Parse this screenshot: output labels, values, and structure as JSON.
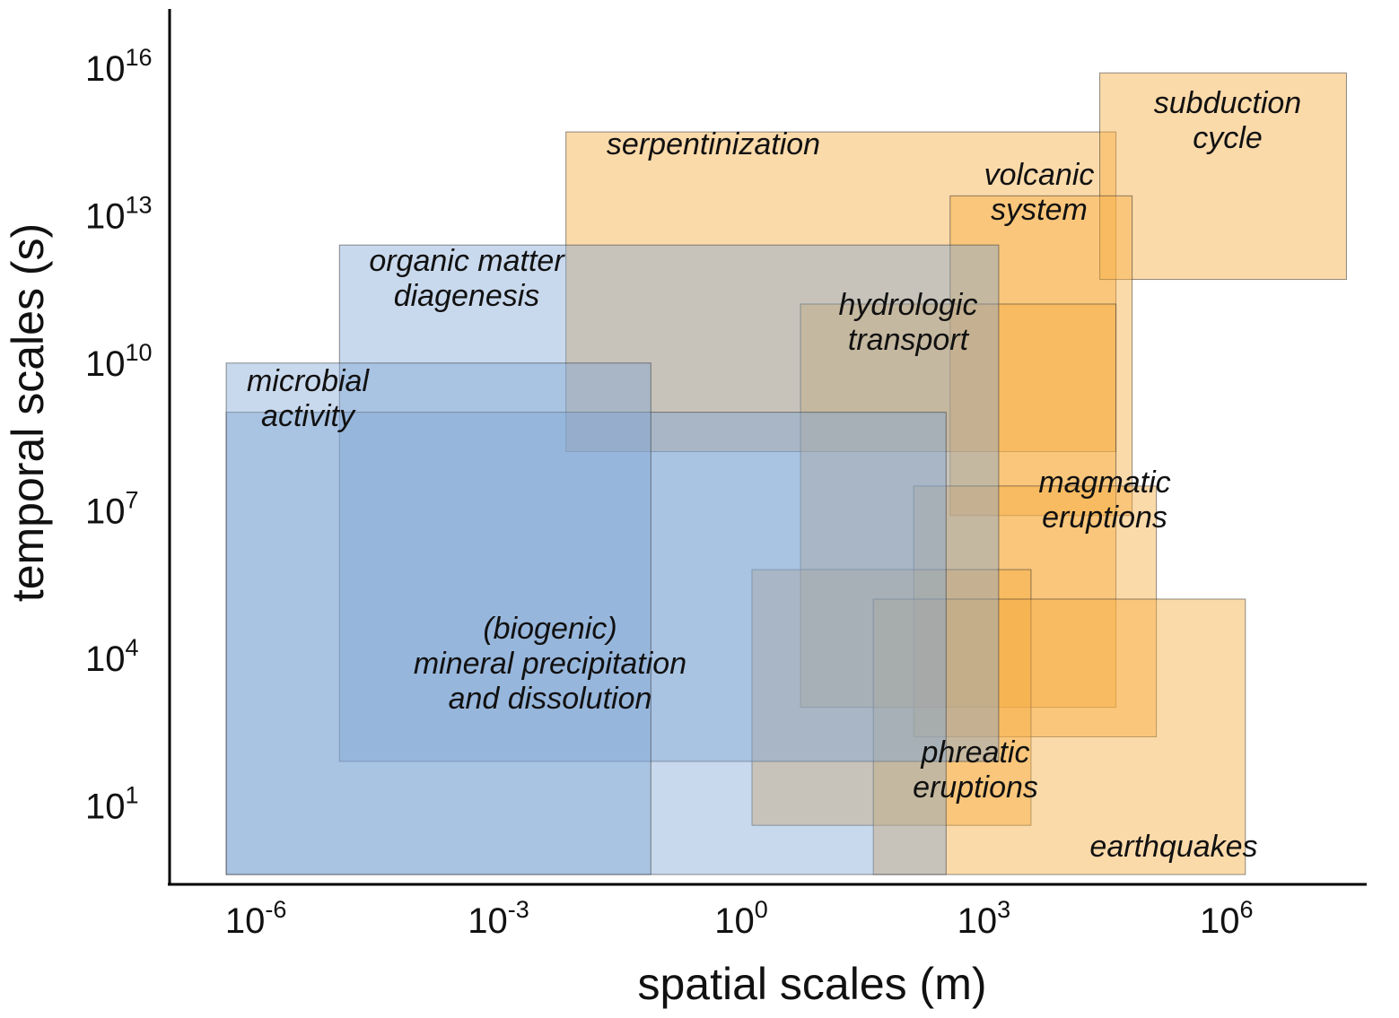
{
  "chart_data": {
    "type": "range-rectangles",
    "xlabel": "spatial scales (m)",
    "ylabel": "temporal scales (s)",
    "x_scale": "log10",
    "y_scale": "log10",
    "xlim_exp": [
      -7.2,
      7.6
    ],
    "ylim_exp": [
      -0.6,
      17.2
    ],
    "x_ticks": [
      {
        "base": "10",
        "exp": "-6",
        "value": -6
      },
      {
        "base": "10",
        "exp": "-3",
        "value": -3
      },
      {
        "base": "10",
        "exp": "0",
        "value": 0
      },
      {
        "base": "10",
        "exp": "3",
        "value": 3
      },
      {
        "base": "10",
        "exp": "6",
        "value": 6
      }
    ],
    "y_ticks": [
      {
        "base": "10",
        "exp": "1",
        "value": 1
      },
      {
        "base": "10",
        "exp": "4",
        "value": 4
      },
      {
        "base": "10",
        "exp": "7",
        "value": 7
      },
      {
        "base": "10",
        "exp": "10",
        "value": 10
      },
      {
        "base": "10",
        "exp": "13",
        "value": 13
      },
      {
        "base": "10",
        "exp": "16",
        "value": 16
      }
    ],
    "grid": false,
    "legend": "none",
    "colors": {
      "biological": "#7ea4d4",
      "geological": "#f7ad42"
    },
    "regions": [
      {
        "id": "serpentinization",
        "lines": [
          "serpentinization"
        ],
        "group": "geological",
        "x_log": [
          -2.3,
          4.5
        ],
        "y_log": [
          8.2,
          14.7
        ]
      },
      {
        "id": "subduction-cycle",
        "lines": [
          "subduction",
          "cycle"
        ],
        "group": "geological",
        "x_log": [
          4.3,
          7.35
        ],
        "y_log": [
          11.7,
          15.9
        ]
      },
      {
        "id": "volcanic-system",
        "lines": [
          "volcanic",
          "system"
        ],
        "group": "geological",
        "x_log": [
          2.45,
          4.7
        ],
        "y_log": [
          6.9,
          13.4
        ]
      },
      {
        "id": "hydrologic-transport",
        "lines": [
          "hydrologic",
          "transport"
        ],
        "group": "geological",
        "x_log": [
          0.6,
          4.5
        ],
        "y_log": [
          3.0,
          11.2
        ]
      },
      {
        "id": "magmatic-eruptions",
        "lines": [
          "magmatic",
          "eruptions"
        ],
        "group": "geological",
        "x_log": [
          2.0,
          5.0
        ],
        "y_log": [
          2.4,
          7.5
        ]
      },
      {
        "id": "phreatic-eruptions",
        "lines": [
          "phreatic",
          "eruptions"
        ],
        "group": "geological",
        "x_log": [
          0.0,
          3.45
        ],
        "y_log": [
          0.6,
          5.8
        ]
      },
      {
        "id": "earthquakes",
        "lines": [
          "earthquakes"
        ],
        "group": "geological",
        "x_log": [
          1.5,
          6.1
        ],
        "y_log": [
          -0.4,
          5.2
        ]
      },
      {
        "id": "organic-matter-diagenesis",
        "lines": [
          "organic matter",
          "diagenesis"
        ],
        "group": "biological",
        "x_log": [
          -5.1,
          3.05
        ],
        "y_log": [
          1.9,
          12.4
        ]
      },
      {
        "id": "mineral-precipitation",
        "lines": [
          "(biogenic)",
          "mineral precipitation",
          "and dissolution"
        ],
        "group": "biological",
        "x_log": [
          -6.5,
          2.4
        ],
        "y_log": [
          -0.4,
          9.0
        ]
      },
      {
        "id": "microbial-activity",
        "lines": [
          "microbial",
          "activity"
        ],
        "group": "biological",
        "x_log": [
          -6.5,
          -1.25
        ],
        "y_log": [
          -0.4,
          10.0
        ]
      }
    ]
  }
}
